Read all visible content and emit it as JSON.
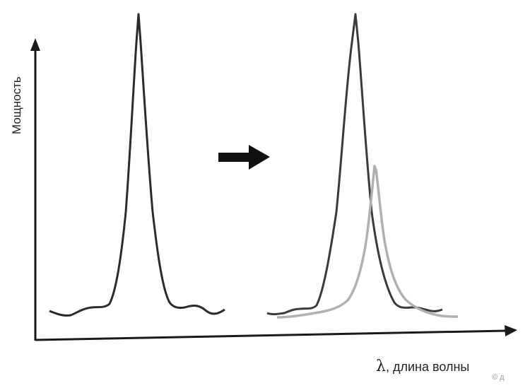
{
  "diagram": {
    "y_axis_label": "Мощность",
    "x_axis_symbol": "λ",
    "x_axis_label": ", длина волны",
    "corner_text": "© д",
    "arrow": "arrow-right-icon",
    "colors": {
      "curve_primary": "#2b2b2b",
      "curve_shifted": "#b0b0b0",
      "axes": "#1a1a1a",
      "arrow": "#111111"
    }
  }
}
